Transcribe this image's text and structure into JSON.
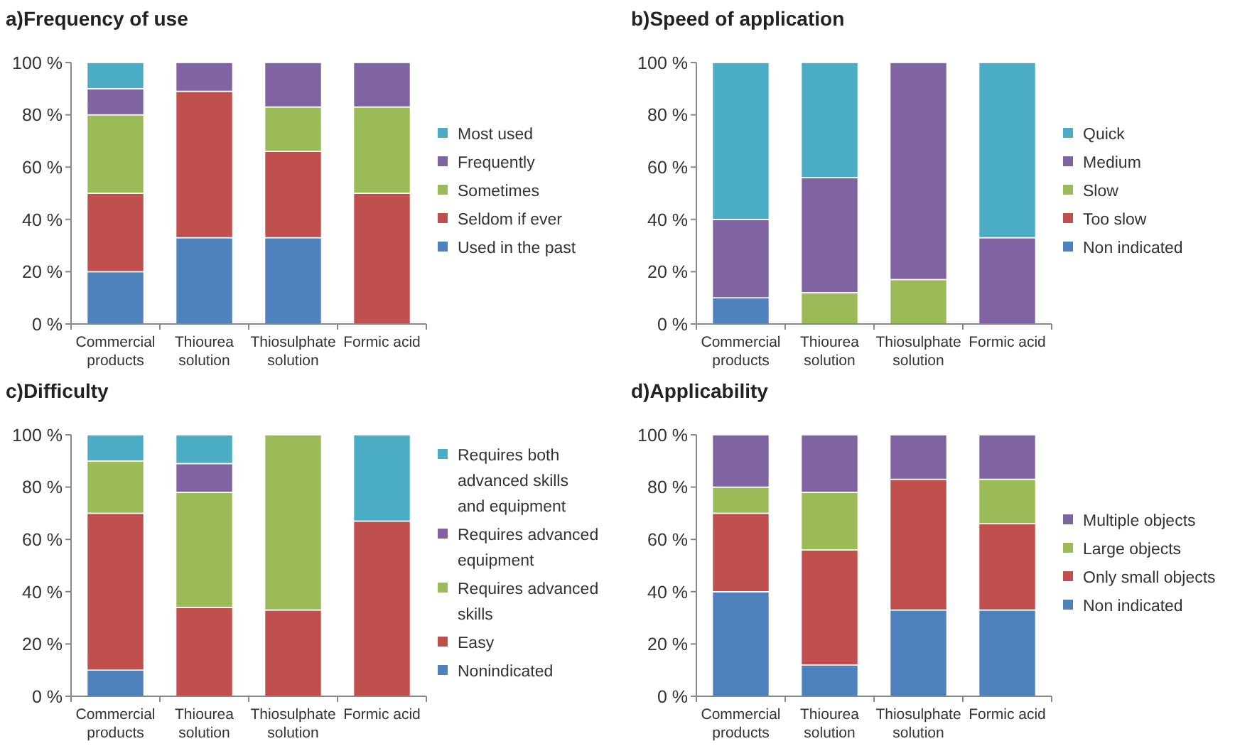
{
  "chart_data": [
    {
      "type": "bar",
      "title": "a)Frequency of use",
      "stacked": true,
      "legend": "right",
      "categories": [
        "Commercial products",
        "Thiourea solution",
        "Thiosulphate solution",
        "Formic acid"
      ],
      "ylim": [
        0,
        100
      ],
      "yticks": [
        {
          "value": 0,
          "label": "0 %"
        },
        {
          "value": 20,
          "label": "20 %"
        },
        {
          "value": 40,
          "label": "40 %"
        },
        {
          "value": 60,
          "label": "60 %"
        },
        {
          "value": 80,
          "label": "80 %"
        },
        {
          "value": 100,
          "label": "100 %"
        }
      ],
      "series": [
        {
          "name": "Used in the past",
          "color": "#4f81bd",
          "values": [
            20,
            33,
            33,
            0
          ]
        },
        {
          "name": "Seldom if ever",
          "color": "#c0504d",
          "values": [
            30,
            56,
            33,
            50
          ]
        },
        {
          "name": "Sometimes",
          "color": "#9bbb59",
          "values": [
            30,
            0,
            17,
            33
          ]
        },
        {
          "name": "Frequently",
          "color": "#8064a2",
          "values": [
            10,
            11,
            17,
            17
          ]
        },
        {
          "name": "Most used",
          "color": "#4bacc6",
          "values": [
            10,
            0,
            0,
            0
          ]
        }
      ]
    },
    {
      "type": "bar",
      "title": "b)Speed of application",
      "stacked": true,
      "legend": "right",
      "categories": [
        "Commercial products",
        "Thiourea solution",
        "Thiosulphate solution",
        "Formic acid"
      ],
      "ylim": [
        0,
        100
      ],
      "yticks": [
        {
          "value": 0,
          "label": "0 %"
        },
        {
          "value": 20,
          "label": "20 %"
        },
        {
          "value": 40,
          "label": "40 %"
        },
        {
          "value": 60,
          "label": "60 %"
        },
        {
          "value": 80,
          "label": "80 %"
        },
        {
          "value": 100,
          "label": "100 %"
        }
      ],
      "series": [
        {
          "name": "Non indicated",
          "color": "#4f81bd",
          "values": [
            10,
            0,
            0,
            0
          ]
        },
        {
          "name": "Too slow",
          "color": "#c0504d",
          "values": [
            0,
            0,
            0,
            0
          ]
        },
        {
          "name": "Slow",
          "color": "#9bbb59",
          "values": [
            0,
            12,
            17,
            0
          ]
        },
        {
          "name": "Medium",
          "color": "#8064a2",
          "values": [
            30,
            44,
            83,
            33
          ]
        },
        {
          "name": "Quick",
          "color": "#4bacc6",
          "values": [
            60,
            44,
            0,
            67
          ]
        }
      ]
    },
    {
      "type": "bar",
      "title": "c)Difficulty",
      "stacked": true,
      "legend": "right",
      "categories": [
        "Commercial products",
        "Thiourea solution",
        "Thiosulphate solution",
        "Formic acid"
      ],
      "ylim": [
        0,
        100
      ],
      "yticks": [
        {
          "value": 0,
          "label": "0 %"
        },
        {
          "value": 20,
          "label": "20 %"
        },
        {
          "value": 40,
          "label": "40 %"
        },
        {
          "value": 60,
          "label": "60 %"
        },
        {
          "value": 80,
          "label": "80 %"
        },
        {
          "value": 100,
          "label": "100 %"
        }
      ],
      "series": [
        {
          "name": "Nonindicated",
          "color": "#4f81bd",
          "values": [
            10,
            0,
            0,
            0
          ]
        },
        {
          "name": "Easy",
          "color": "#c0504d",
          "values": [
            60,
            34,
            33,
            67
          ]
        },
        {
          "name": "Requires advanced skills",
          "color": "#9bbb59",
          "values": [
            20,
            44,
            67,
            0
          ]
        },
        {
          "name": "Requires advanced equipment",
          "color": "#8064a2",
          "values": [
            0,
            11,
            0,
            0
          ]
        },
        {
          "name": "Requires both advanced skills and equipment",
          "color": "#4bacc6",
          "values": [
            10,
            11,
            0,
            33
          ]
        }
      ]
    },
    {
      "type": "bar",
      "title": "d)Applicability",
      "stacked": true,
      "legend": "right",
      "categories": [
        "Commercial products",
        "Thiourea solution",
        "Thiosulphate solution",
        "Formic acid"
      ],
      "ylim": [
        0,
        100
      ],
      "yticks": [
        {
          "value": 0,
          "label": "0 %"
        },
        {
          "value": 20,
          "label": "20 %"
        },
        {
          "value": 40,
          "label": "40 %"
        },
        {
          "value": 60,
          "label": "60 %"
        },
        {
          "value": 80,
          "label": "80 %"
        },
        {
          "value": 100,
          "label": "100 %"
        }
      ],
      "series": [
        {
          "name": "Non indicated",
          "color": "#4f81bd",
          "values": [
            40,
            12,
            33,
            33
          ]
        },
        {
          "name": "Only small objects",
          "color": "#c0504d",
          "values": [
            30,
            44,
            50,
            33
          ]
        },
        {
          "name": "Large objects",
          "color": "#9bbb59",
          "values": [
            10,
            22,
            0,
            17
          ]
        },
        {
          "name": "Multiple objects",
          "color": "#8064a2",
          "values": [
            20,
            22,
            17,
            17
          ]
        }
      ]
    }
  ]
}
